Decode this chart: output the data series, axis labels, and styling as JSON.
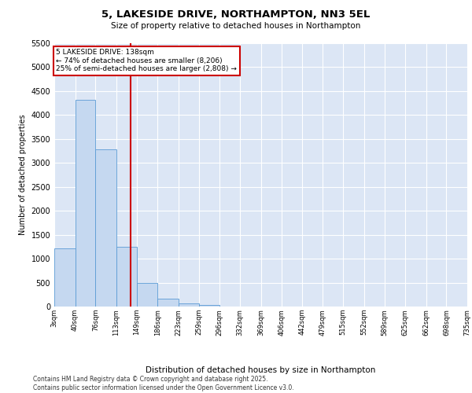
{
  "title_line1": "5, LAKESIDE DRIVE, NORTHAMPTON, NN3 5EL",
  "title_line2": "Size of property relative to detached houses in Northampton",
  "xlabel": "Distribution of detached houses by size in Northampton",
  "ylabel": "Number of detached properties",
  "footer_line1": "Contains HM Land Registry data © Crown copyright and database right 2025.",
  "footer_line2": "Contains public sector information licensed under the Open Government Licence v3.0.",
  "annotation_line1": "5 LAKESIDE DRIVE: 138sqm",
  "annotation_line2": "← 74% of detached houses are smaller (8,206)",
  "annotation_line3": "25% of semi-detached houses are larger (2,808) →",
  "property_size_sqm": 138,
  "bin_edges": [
    3,
    40,
    76,
    113,
    149,
    186,
    223,
    259,
    296,
    332,
    369,
    406,
    442,
    479,
    515,
    552,
    589,
    625,
    662,
    698,
    735
  ],
  "bar_values": [
    1220,
    4320,
    3290,
    1240,
    490,
    160,
    60,
    30,
    0,
    0,
    0,
    0,
    0,
    0,
    0,
    0,
    0,
    0,
    0,
    0
  ],
  "bar_color": "#c5d8f0",
  "bar_edge_color": "#5b9bd5",
  "vline_color": "#cc0000",
  "background_color": "#dce6f5",
  "ylim": [
    0,
    5500
  ],
  "yticks": [
    0,
    500,
    1000,
    1500,
    2000,
    2500,
    3000,
    3500,
    4000,
    4500,
    5000,
    5500
  ]
}
